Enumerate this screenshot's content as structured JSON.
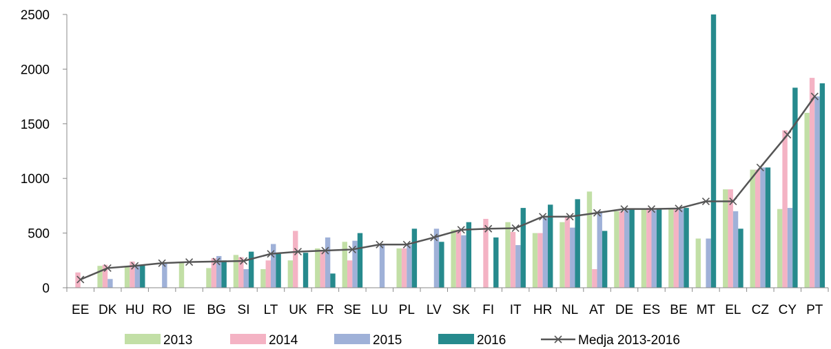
{
  "chart_data": {
    "type": "bar",
    "categories": [
      "EE",
      "DK",
      "HU",
      "RO",
      "IE",
      "BG",
      "SI",
      "LT",
      "UK",
      "FR",
      "SE",
      "LU",
      "PL",
      "LV",
      "SK",
      "FI",
      "IT",
      "HR",
      "NL",
      "AT",
      "DE",
      "ES",
      "BE",
      "MT",
      "EL",
      "CZ",
      "CY",
      "PT"
    ],
    "series": [
      {
        "name": "2013",
        "color": "#c2dfa6",
        "values": [
          null,
          200,
          200,
          null,
          235,
          180,
          300,
          170,
          250,
          360,
          420,
          null,
          360,
          null,
          530,
          null,
          600,
          500,
          600,
          880,
          700,
          720,
          720,
          450,
          900,
          1080,
          720,
          1600
        ]
      },
      {
        "name": "2014",
        "color": "#f4b3c4",
        "values": [
          140,
          210,
          240,
          null,
          null,
          270,
          280,
          250,
          520,
          330,
          250,
          null,
          360,
          null,
          530,
          630,
          510,
          500,
          650,
          170,
          700,
          730,
          730,
          null,
          900,
          1080,
          1440,
          1920
        ]
      },
      {
        "name": "2015",
        "color": "#9fb1d8",
        "values": [
          null,
          80,
          200,
          220,
          null,
          290,
          170,
          400,
          null,
          460,
          430,
          400,
          390,
          540,
          480,
          null,
          390,
          640,
          550,
          700,
          720,
          710,
          720,
          450,
          700,
          1100,
          730,
          1750
        ]
      },
      {
        "name": "2016",
        "color": "#268a8d",
        "values": [
          null,
          null,
          210,
          null,
          null,
          250,
          330,
          310,
          320,
          130,
          500,
          null,
          540,
          420,
          600,
          460,
          730,
          760,
          810,
          520,
          720,
          720,
          730,
          2500,
          540,
          1100,
          1830,
          1870
        ]
      }
    ],
    "line": {
      "name": "Medja 2013-2016",
      "color": "#555555",
      "values": [
        75,
        180,
        200,
        225,
        235,
        240,
        245,
        310,
        330,
        340,
        350,
        395,
        395,
        460,
        530,
        540,
        545,
        650,
        650,
        685,
        720,
        720,
        725,
        790,
        790,
        1100,
        1400,
        1750
      ]
    },
    "ylim": [
      0,
      2500
    ],
    "yticks": [
      0,
      500,
      1000,
      1500,
      2000,
      2500
    ],
    "title": "",
    "xlabel": "",
    "ylabel": "",
    "grid": false,
    "legend_position": "bottom"
  }
}
